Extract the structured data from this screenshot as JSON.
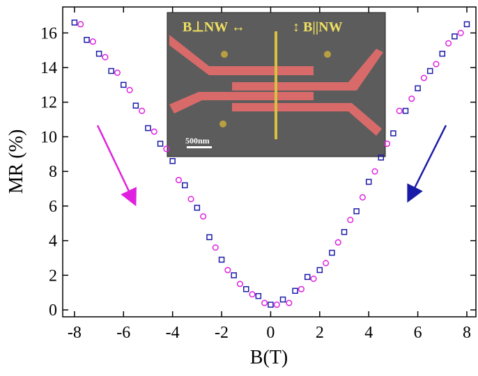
{
  "chart_data": {
    "type": "scatter",
    "xlabel": "B(T)",
    "ylabel": "MR (%)",
    "xlim": [
      -8.48,
      8.37
    ],
    "ylim": [
      -0.4,
      17.5
    ],
    "xticks": [
      -8,
      -6,
      -4,
      -2,
      0,
      2,
      4,
      6,
      8
    ],
    "yticks": [
      0,
      2,
      4,
      6,
      8,
      10,
      12,
      14,
      16
    ],
    "inset_labels": [
      "B⊥NW ↔",
      "↕ B||NW",
      "500nm"
    ],
    "series": [
      {
        "color": "#1a1aa8",
        "marker": "square",
        "x": [
          -8,
          -7.5,
          -7,
          -6.5,
          -6,
          -5.5,
          -5,
          -4.5,
          -4,
          -3.5,
          -3,
          -2.5,
          -2,
          -1.5,
          -1,
          -0.5,
          0,
          0.5,
          1,
          1.5,
          2,
          2.5,
          3,
          3.5,
          4,
          4.5,
          5,
          5.5,
          6,
          6.5,
          7,
          7.5,
          8
        ],
        "values": [
          16.6,
          15.6,
          14.8,
          13.8,
          13.0,
          11.8,
          10.5,
          9.6,
          8.6,
          7.2,
          5.9,
          4.2,
          2.9,
          2.0,
          1.2,
          0.8,
          0.3,
          0.6,
          1.1,
          1.9,
          2.3,
          3.3,
          4.5,
          5.7,
          7.4,
          8.8,
          10.2,
          11.5,
          12.8,
          13.8,
          14.8,
          15.8,
          16.5
        ]
      },
      {
        "color": "#e020e0",
        "marker": "circle",
        "x": [
          -7.75,
          -7.25,
          -6.75,
          -6.25,
          -5.75,
          -5.25,
          -4.75,
          -4.25,
          -3.75,
          -3.25,
          -2.75,
          -2.25,
          -1.75,
          -1.25,
          -0.75,
          -0.25,
          0.25,
          0.75,
          1.25,
          1.75,
          2.25,
          2.75,
          3.25,
          3.75,
          4.25,
          4.75,
          5.25,
          5.75,
          6.25,
          6.75,
          7.25,
          7.75
        ],
        "values": [
          16.5,
          15.5,
          14.6,
          13.7,
          12.7,
          11.5,
          10.3,
          9.3,
          7.5,
          6.4,
          5.4,
          3.6,
          2.3,
          1.5,
          0.9,
          0.4,
          0.3,
          0.4,
          1.2,
          1.8,
          2.7,
          3.9,
          5.2,
          6.5,
          8.0,
          9.6,
          11.5,
          12.2,
          13.4,
          14.2,
          15.4,
          16.0
        ]
      }
    ]
  }
}
